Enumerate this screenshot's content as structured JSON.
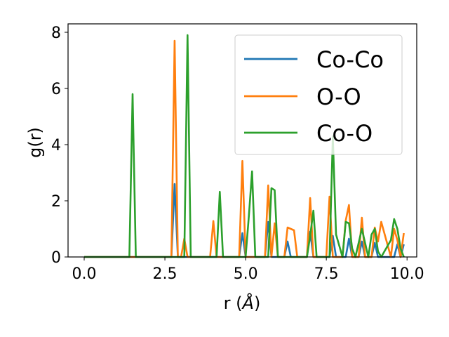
{
  "chart_data": {
    "type": "line",
    "xlabel": "r ($\\AA$)",
    "xlabel_text": "r (",
    "xlabel_unit": "Å",
    "xlabel_close": ")",
    "ylabel": "g(r)",
    "xlim": [
      -0.5,
      10.3
    ],
    "ylim": [
      0,
      8.3
    ],
    "xticks": [
      0.0,
      2.5,
      5.0,
      7.5,
      10.0
    ],
    "xtick_labels": [
      "0.0",
      "2.5",
      "5.0",
      "7.5",
      "10.0"
    ],
    "yticks": [
      0,
      2,
      4,
      6,
      8
    ],
    "ytick_labels": [
      "0",
      "2",
      "4",
      "6",
      "8"
    ],
    "legend_position": "top-right",
    "series": [
      {
        "name": "Co-Co",
        "color": "#1f77b4",
        "x": [
          0.0,
          2.7,
          2.8,
          2.9,
          4.8,
          4.9,
          5.0,
          5.6,
          5.7,
          5.8,
          6.2,
          6.3,
          6.4,
          6.9,
          7.0,
          7.1,
          7.6,
          7.7,
          7.8,
          8.1,
          8.2,
          8.3,
          8.5,
          8.6,
          8.7,
          8.9,
          9.0,
          9.1,
          9.6,
          9.7,
          9.8,
          9.9
        ],
        "y": [
          0,
          0,
          2.6,
          0,
          0,
          0.85,
          0,
          0,
          1.25,
          0,
          0,
          0.55,
          0,
          0,
          0.9,
          0,
          0,
          0.75,
          0,
          0,
          0.65,
          0,
          0,
          0.55,
          0,
          0,
          0.5,
          0,
          0,
          0.45,
          0,
          0.45
        ]
      },
      {
        "name": "O-O",
        "color": "#ff7f0e",
        "x": [
          0.0,
          2.7,
          2.8,
          2.9,
          3.0,
          3.1,
          3.2,
          3.9,
          4.0,
          4.1,
          4.8,
          4.9,
          5.0,
          5.6,
          5.7,
          5.8,
          5.9,
          6.0,
          6.2,
          6.3,
          6.5,
          6.6,
          6.9,
          7.0,
          7.1,
          7.5,
          7.6,
          7.7,
          8.0,
          8.1,
          8.2,
          8.3,
          8.5,
          8.6,
          8.7,
          8.9,
          9.0,
          9.1,
          9.2,
          9.5,
          9.6,
          9.7,
          9.8,
          9.9
        ],
        "y": [
          0,
          0,
          7.7,
          0,
          0,
          0.65,
          0,
          0,
          1.28,
          0,
          0,
          3.42,
          0,
          0,
          2.55,
          0,
          1.2,
          0,
          0,
          1.05,
          0.95,
          0,
          0,
          2.1,
          0,
          0,
          2.15,
          0,
          0,
          1.3,
          1.85,
          0,
          0,
          1.4,
          0,
          0,
          1.05,
          0.55,
          1.25,
          0,
          1.0,
          0.6,
          0,
          0.85
        ]
      },
      {
        "name": "Co-O",
        "color": "#2ca02c",
        "x": [
          0.0,
          1.4,
          1.5,
          1.6,
          3.1,
          3.2,
          3.3,
          4.1,
          4.2,
          4.3,
          5.0,
          5.1,
          5.2,
          5.3,
          5.7,
          5.8,
          5.9,
          6.0,
          6.9,
          7.0,
          7.1,
          7.2,
          7.6,
          7.7,
          7.8,
          8.0,
          8.1,
          8.2,
          8.3,
          8.4,
          8.6,
          8.7,
          8.8,
          8.9,
          9.0,
          9.1,
          9.2,
          9.3,
          9.5,
          9.6,
          9.7,
          9.8,
          9.9
        ],
        "y": [
          0,
          0,
          5.8,
          0,
          0,
          7.9,
          0,
          0,
          2.32,
          0,
          0,
          1.45,
          3.05,
          0,
          0,
          2.45,
          2.38,
          0,
          0,
          0.75,
          1.65,
          0,
          0,
          4.3,
          0.8,
          0,
          1.25,
          1.2,
          0.3,
          0,
          1.0,
          0.5,
          0,
          0.8,
          1.0,
          0.2,
          0,
          0.2,
          0.6,
          1.35,
          1.0,
          0.3,
          0
        ]
      }
    ]
  }
}
